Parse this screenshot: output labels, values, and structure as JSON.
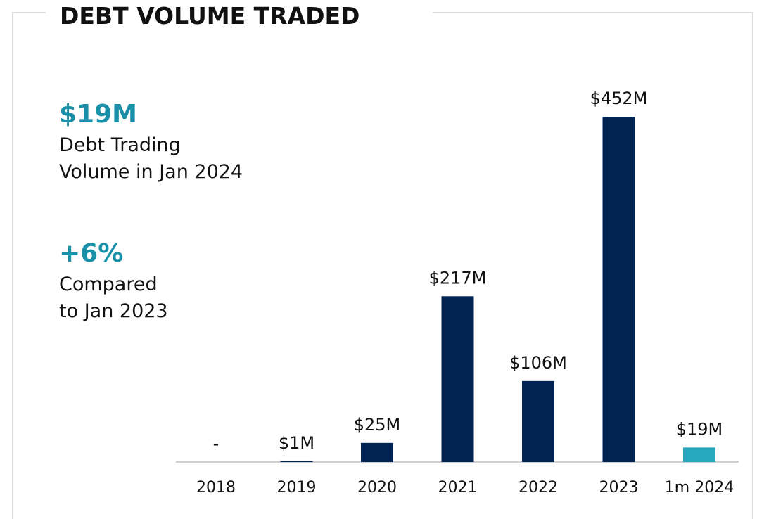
{
  "chart_data": {
    "type": "bar",
    "title": "DEBT VOLUME TRADED",
    "categories": [
      "2018",
      "2019",
      "2020",
      "2021",
      "2022",
      "2023",
      "1m 2024"
    ],
    "values": [
      0,
      1,
      25,
      217,
      106,
      452,
      19
    ],
    "value_labels": [
      "-",
      "$1M",
      "$25M",
      "$217M",
      "$106M",
      "$452M",
      "$19M"
    ],
    "colors": [
      "#002352",
      "#002352",
      "#002352",
      "#002352",
      "#002352",
      "#002352",
      "#27a8be"
    ],
    "annotations": [
      {
        "value": "$19M",
        "lines": [
          "Debt Trading",
          "Volume in Jan 2024"
        ]
      },
      {
        "value": "+6%",
        "lines": [
          "Compared",
          "to Jan 2023"
        ]
      }
    ]
  }
}
